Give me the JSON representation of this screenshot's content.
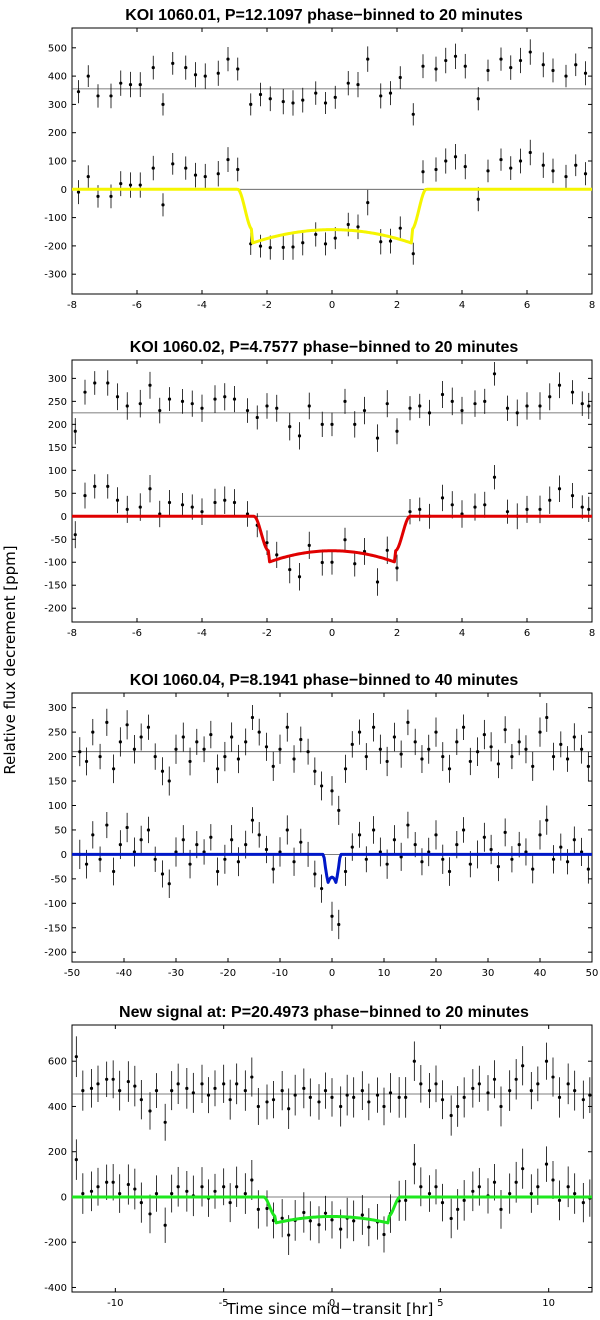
{
  "figure": {
    "ylabel": "Relative flux decrement [ppm]",
    "xlabel": "Time since mid−transit [hr]"
  },
  "chart_data": [
    {
      "type": "scatter",
      "title": "KOI 1060.01, P=12.1097 phase−binned to 20 minutes",
      "xlim": [
        -8,
        8
      ],
      "ylim": [
        -370,
        570
      ],
      "xticks": [
        -8,
        -6,
        -4,
        -2,
        0,
        2,
        4,
        6,
        8
      ],
      "yticks": [
        -300,
        -200,
        -100,
        0,
        100,
        200,
        300,
        400,
        500
      ],
      "offset": 355,
      "depth": 190,
      "t1": 2.9,
      "t2": 2.45,
      "err": 45,
      "model_color": "#f5f500",
      "series": [
        {
          "x": [
            -7.8,
            -7.5,
            -7.2,
            -6.8,
            -6.5,
            -6.2,
            -5.9,
            -5.5,
            -5.2,
            -4.9,
            -4.5,
            -4.2,
            -3.9,
            -3.5,
            -3.2,
            -2.9
          ],
          "y": [
            345,
            400,
            330,
            330,
            375,
            370,
            370,
            430,
            300,
            445,
            430,
            405,
            400,
            410,
            460,
            425
          ]
        },
        {
          "x": [
            -2.5,
            -2.2,
            -1.9,
            -1.5,
            -1.2,
            -0.9,
            -0.5,
            -0.2,
            0.1,
            0.5,
            0.8,
            1.1,
            1.5,
            1.8,
            2.1,
            2.5
          ],
          "y": [
            300,
            335,
            320,
            310,
            305,
            315,
            340,
            305,
            325,
            375,
            370,
            460,
            330,
            340,
            395,
            265
          ]
        },
        {
          "x": [
            2.8,
            3.2,
            3.5,
            3.8,
            4.1,
            4.5,
            4.8,
            5.2,
            5.5,
            5.8,
            6.1,
            6.5,
            6.8,
            7.2,
            7.5,
            7.8
          ],
          "y": [
            435,
            425,
            455,
            470,
            435,
            320,
            420,
            460,
            430,
            455,
            485,
            440,
            420,
            400,
            440,
            410
          ]
        }
      ]
    },
    {
      "type": "scatter",
      "title": "KOI 1060.02, P=4.7577 phase−binned to 20 minutes",
      "xlim": [
        -8,
        8
      ],
      "ylim": [
        -230,
        340
      ],
      "xticks": [
        -8,
        -6,
        -4,
        -2,
        0,
        2,
        4,
        6,
        8
      ],
      "yticks": [
        -200,
        -150,
        -100,
        -50,
        0,
        50,
        100,
        150,
        200,
        250,
        300
      ],
      "offset": 225,
      "depth": 100,
      "t1": 2.4,
      "t2": 1.95,
      "err": 30,
      "model_color": "#e00000",
      "series": [
        {
          "x": [
            -7.9,
            -7.6,
            -7.3,
            -6.9,
            -6.6,
            -6.3,
            -5.9,
            -5.6,
            -5.3,
            -5.0,
            -4.6,
            -4.3,
            -4.0,
            -3.6,
            -3.3,
            -3.0,
            -2.6,
            -2.3
          ],
          "y": [
            185,
            270,
            290,
            290,
            260,
            240,
            245,
            285,
            230,
            255,
            250,
            245,
            235,
            255,
            260,
            255,
            230,
            215
          ]
        },
        {
          "x": [
            -2.0,
            -1.7,
            -1.3,
            -1.0,
            -0.7,
            -0.3,
            0.0,
            0.4,
            0.7,
            1.0,
            1.4,
            1.7,
            2.0
          ],
          "y": [
            240,
            235,
            195,
            175,
            240,
            200,
            200,
            250,
            200,
            230,
            170,
            245,
            185
          ]
        },
        {
          "x": [
            2.4,
            2.7,
            3.0,
            3.4,
            3.7,
            4.0,
            4.4,
            4.7,
            5.0,
            5.4,
            5.7,
            6.0,
            6.4,
            6.7,
            7.0,
            7.4,
            7.7,
            7.9
          ],
          "y": [
            235,
            240,
            225,
            265,
            250,
            230,
            245,
            250,
            310,
            235,
            225,
            240,
            240,
            260,
            285,
            270,
            245,
            240
          ]
        }
      ]
    },
    {
      "type": "scatter",
      "title": "KOI 1060.04, P=8.1941 phase−binned to 40 minutes",
      "xlim": [
        -50,
        50
      ],
      "ylim": [
        -220,
        330
      ],
      "xticks": [
        -50,
        -40,
        -30,
        -20,
        -10,
        0,
        10,
        20,
        30,
        40,
        50
      ],
      "yticks": [
        -200,
        -150,
        -100,
        -50,
        0,
        50,
        100,
        150,
        200,
        250,
        300
      ],
      "offset": 210,
      "depth": 62,
      "t1": 1.7,
      "t2": 0.9,
      "err": 30,
      "model_color": "#0018c8",
      "series": [
        {
          "x": [
            -48.5,
            -47.2,
            -46.0,
            -44.6,
            -43.3,
            -42.0,
            -40.7,
            -39.4,
            -38.0,
            -36.7,
            -35.3,
            -34.0,
            -32.6,
            -31.3,
            -30.0,
            -28.6,
            -27.3,
            -26.0,
            -24.6,
            -23.3,
            -22.0,
            -20.6,
            -19.3,
            -18.0,
            -16.6,
            -15.3,
            -14.0,
            -12.6,
            -11.3,
            -10.0,
            -8.6,
            -7.3,
            -6.0,
            -4.6,
            -3.3,
            -2.0
          ],
          "y": [
            210,
            190,
            250,
            200,
            270,
            175,
            230,
            265,
            215,
            240,
            260,
            200,
            170,
            150,
            215,
            240,
            190,
            230,
            215,
            245,
            175,
            200,
            240,
            195,
            230,
            280,
            250,
            220,
            180,
            215,
            260,
            195,
            235,
            210,
            170,
            140
          ]
        },
        {
          "x": [
            0.0,
            1.3
          ],
          "y": [
            130,
            90
          ]
        },
        {
          "x": [
            2.6,
            3.9,
            5.3,
            6.6,
            8.0,
            9.3,
            10.6,
            12.0,
            13.3,
            14.6,
            16.0,
            17.3,
            18.6,
            20.0,
            21.3,
            22.6,
            24.0,
            25.3,
            26.6,
            28.0,
            29.3,
            30.6,
            32.0,
            33.3,
            34.6,
            36.0,
            37.3,
            38.6,
            40.0,
            41.3,
            42.6,
            44.0,
            45.3,
            46.6,
            48.0,
            49.3
          ],
          "y": [
            175,
            225,
            250,
            200,
            260,
            215,
            190,
            240,
            205,
            270,
            230,
            195,
            215,
            250,
            200,
            175,
            230,
            260,
            190,
            210,
            245,
            220,
            185,
            255,
            200,
            230,
            215,
            180,
            250,
            280,
            200,
            225,
            195,
            240,
            215,
            180
          ]
        }
      ]
    },
    {
      "type": "scatter",
      "title": "New signal at: P=20.4973 phase−binned to 20 minutes",
      "xlim": [
        -12,
        12
      ],
      "ylim": [
        -420,
        760
      ],
      "xticks": [
        -10,
        -5,
        0,
        5,
        10
      ],
      "yticks": [
        -400,
        -200,
        0,
        200,
        400,
        600
      ],
      "offset": 455,
      "depth": 115,
      "t1": 3.15,
      "t2": 2.6,
      "err": 90,
      "model_color": "#1ee81e",
      "series": [
        {
          "x": [
            -11.8,
            -11.5,
            -11.1,
            -10.8,
            -10.4,
            -10.1,
            -9.8,
            -9.4,
            -9.1,
            -8.8,
            -8.4,
            -8.1,
            -7.7,
            -7.4,
            -7.1,
            -6.7,
            -6.4,
            -6.0,
            -5.7,
            -5.4,
            -5.0,
            -4.7,
            -4.4,
            -4.0,
            -3.7,
            -3.4
          ],
          "y": [
            620,
            470,
            480,
            500,
            520,
            520,
            470,
            510,
            490,
            430,
            380,
            470,
            330,
            470,
            500,
            480,
            460,
            500,
            450,
            480,
            500,
            430,
            500,
            470,
            530,
            400
          ]
        },
        {
          "x": [
            -3.0,
            -2.7,
            -2.3,
            -2.0,
            -1.7,
            -1.3,
            -1.0,
            -0.6,
            -0.3,
            0.0,
            0.4,
            0.7,
            1.0,
            1.4,
            1.7,
            2.1,
            2.4,
            2.7,
            3.1
          ],
          "y": [
            420,
            430,
            470,
            390,
            450,
            480,
            440,
            420,
            470,
            440,
            400,
            450,
            440,
            470,
            420,
            450,
            400,
            460,
            440
          ]
        },
        {
          "x": [
            3.4,
            3.8,
            4.1,
            4.5,
            4.8,
            5.1,
            5.5,
            5.8,
            6.1,
            6.5,
            6.8,
            7.2,
            7.5,
            7.8,
            8.2,
            8.5,
            8.8,
            9.2,
            9.5,
            9.9,
            10.2,
            10.5,
            10.9,
            11.2,
            11.6,
            11.9
          ],
          "y": [
            440,
            600,
            500,
            470,
            500,
            430,
            360,
            400,
            440,
            480,
            500,
            460,
            520,
            400,
            470,
            520,
            580,
            470,
            500,
            600,
            530,
            440,
            500,
            470,
            430,
            450
          ]
        }
      ]
    }
  ]
}
